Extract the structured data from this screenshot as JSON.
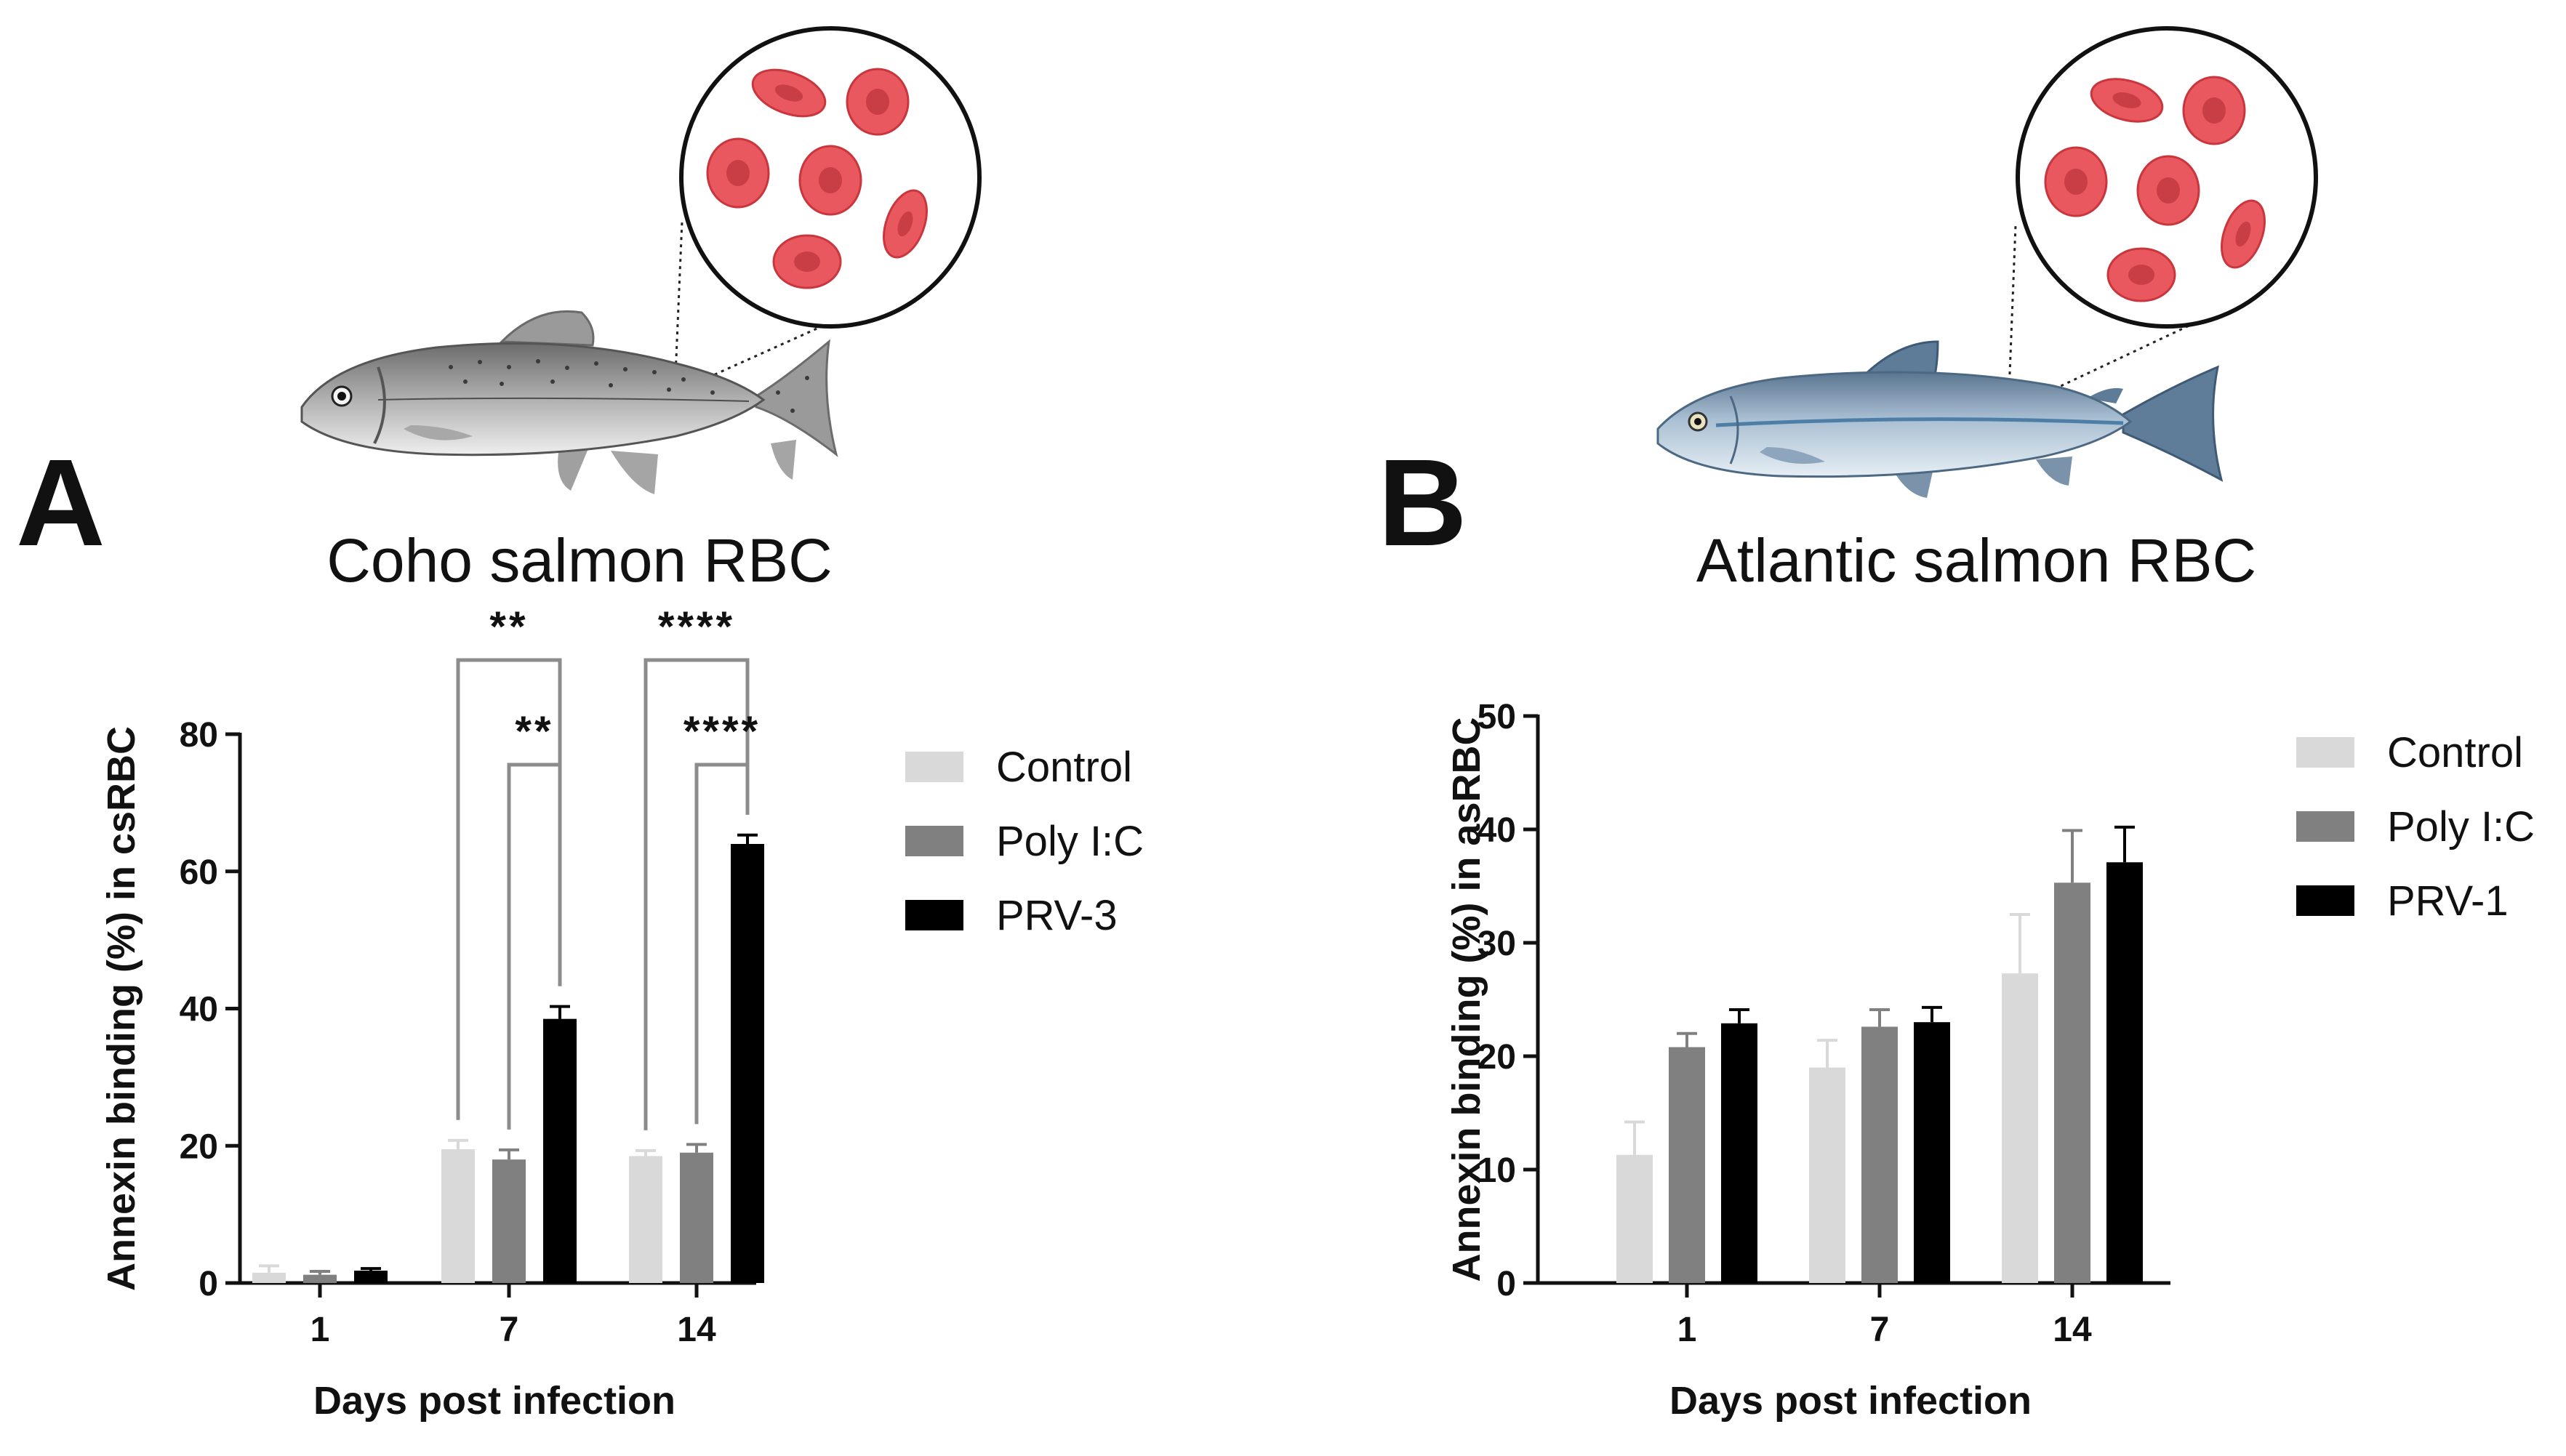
{
  "panels": [
    {
      "letter": "A"
    },
    {
      "letter": "B"
    }
  ],
  "chart_data": [
    {
      "type": "bar",
      "title": "Coho salmon RBC",
      "xlabel": "Days post infection",
      "ylabel": "Annexin binding (%) in csRBC",
      "categories": [
        "1",
        "7",
        "14"
      ],
      "ylim": [
        0,
        80
      ],
      "yticks": [
        "0",
        "20",
        "40",
        "60",
        "80"
      ],
      "series": [
        {
          "name": "Control",
          "color": "#d9d9d9",
          "values": [
            1.5,
            19.5,
            18.5
          ],
          "errors": [
            1.0,
            1.3,
            0.8
          ]
        },
        {
          "name": "Poly I:C",
          "color": "#808080",
          "values": [
            1.2,
            18.0,
            19.0
          ],
          "errors": [
            0.5,
            1.4,
            1.2
          ]
        },
        {
          "name": "PRV-3",
          "color": "#000000",
          "values": [
            1.8,
            38.5,
            64.0
          ],
          "errors": [
            0.3,
            1.8,
            1.3
          ]
        }
      ],
      "annotations": [
        {
          "category": "7",
          "from": "Control",
          "to": "PRV-3",
          "label": "**",
          "level": 2
        },
        {
          "category": "7",
          "from": "Poly I:C",
          "to": "PRV-3",
          "label": "**",
          "level": 1
        },
        {
          "category": "14",
          "from": "Control",
          "to": "PRV-3",
          "label": "****",
          "level": 2
        },
        {
          "category": "14",
          "from": "Poly I:C",
          "to": "PRV-3",
          "label": "****",
          "level": 1
        }
      ],
      "legend_position": "right"
    },
    {
      "type": "bar",
      "title": "Atlantic salmon RBC",
      "xlabel": "Days post infection",
      "ylabel": "Annexin binding (%) in asRBC",
      "categories": [
        "1",
        "7",
        "14"
      ],
      "ylim": [
        0,
        50
      ],
      "yticks": [
        "0",
        "10",
        "20",
        "30",
        "40",
        "50"
      ],
      "series": [
        {
          "name": "Control",
          "color": "#d9d9d9",
          "values": [
            11.3,
            19.0,
            27.3
          ],
          "errors": [
            2.9,
            2.4,
            5.2
          ]
        },
        {
          "name": "Poly I:C",
          "color": "#808080",
          "values": [
            20.8,
            22.6,
            35.3
          ],
          "errors": [
            1.2,
            1.5,
            4.6
          ]
        },
        {
          "name": "PRV-1",
          "color": "#000000",
          "values": [
            22.9,
            23.0,
            37.1
          ],
          "errors": [
            1.2,
            1.3,
            3.1
          ]
        }
      ],
      "annotations": [],
      "legend_position": "right"
    }
  ]
}
